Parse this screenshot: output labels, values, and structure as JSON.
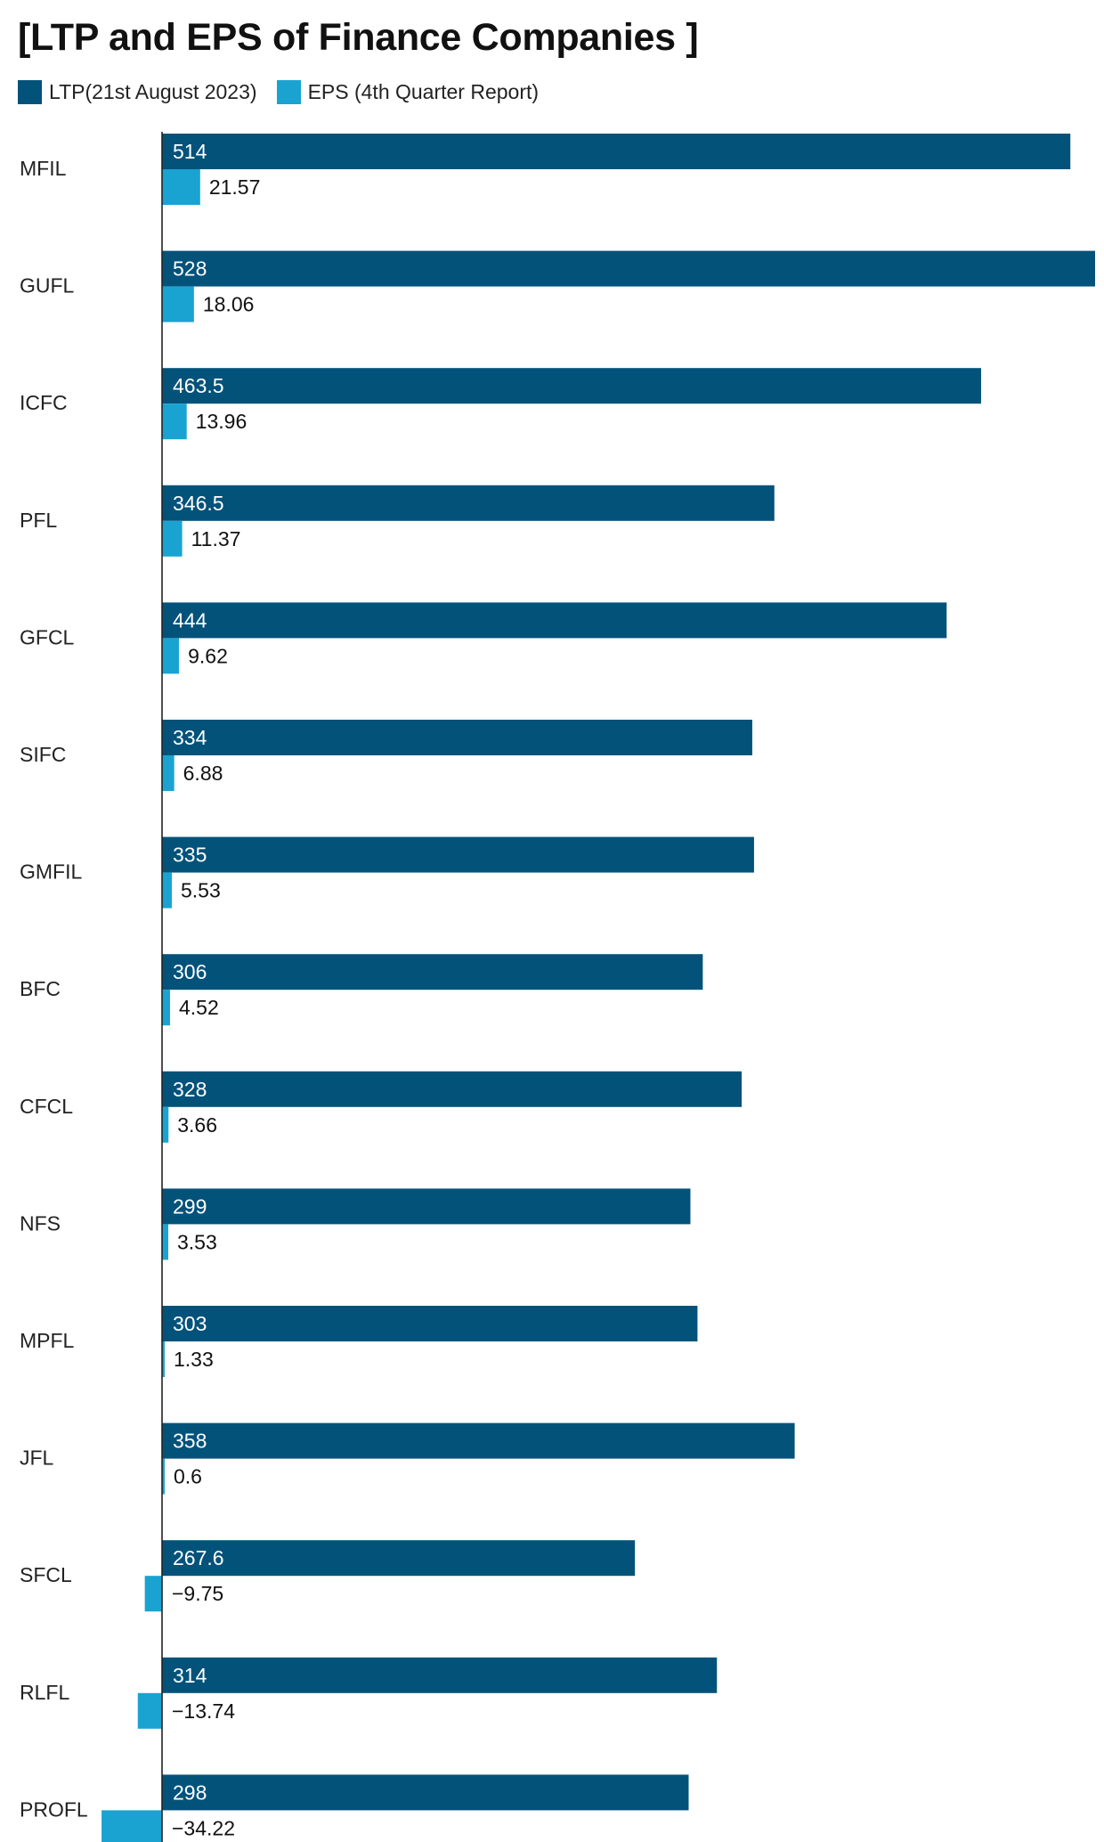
{
  "title": "[LTP and EPS of Finance Companies ]",
  "colors": {
    "ltp": "#03527a",
    "eps": "#1aa3d1",
    "axis": "#222222"
  },
  "chart_data": {
    "type": "bar",
    "orientation": "horizontal",
    "title": "[LTP and EPS of Finance Companies ]",
    "legend_position": "top-left",
    "grid": false,
    "categories": [
      "MFIL",
      "GUFL",
      "ICFC",
      "PFL",
      "GFCL",
      "SIFC",
      "GMFIL",
      "BFC",
      "CFCL",
      "NFS",
      "MPFL",
      "JFL",
      "SFCL",
      "RLFL",
      "PROFL"
    ],
    "series": [
      {
        "name": "LTP(21st August 2023)",
        "color": "#03527a",
        "values": [
          514,
          528,
          463.5,
          346.5,
          444,
          334,
          335,
          306,
          328,
          299,
          303,
          358,
          267.6,
          314,
          298
        ],
        "labels": [
          "514",
          "528",
          "463.5",
          "346.5",
          "444",
          "334",
          "335",
          "306",
          "328",
          "299",
          "303",
          "358",
          "267.6",
          "314",
          "298"
        ]
      },
      {
        "name": "EPS (4th Quarter Report)",
        "color": "#1aa3d1",
        "values": [
          21.57,
          18.06,
          13.96,
          11.37,
          9.62,
          6.88,
          5.53,
          4.52,
          3.66,
          3.53,
          1.33,
          0.6,
          -9.75,
          -13.74,
          -34.22
        ],
        "labels": [
          "21.57",
          "18.06",
          "13.96",
          "11.37",
          "9.62",
          "6.88",
          "5.53",
          "4.52",
          "3.66",
          "3.53",
          "1.33",
          "0.6",
          "−9.75",
          "−13.74",
          "−34.22"
        ]
      }
    ],
    "xlim": [
      -34.22,
      528
    ]
  }
}
